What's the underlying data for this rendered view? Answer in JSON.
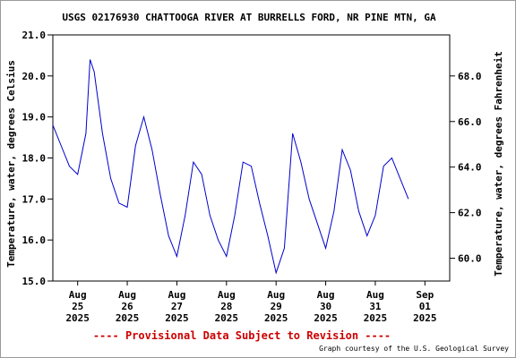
{
  "chart_data": {
    "type": "line",
    "title": "USGS 02176930 CHATTOOGA RIVER AT BURRELLS FORD, NR PINE MTN, GA",
    "ylabel": "Temperature, water, degrees Celsius",
    "y2label": "Temperature, water, degrees Fahrenheit",
    "ylim": [
      15.0,
      21.0
    ],
    "y2lim": [
      59.0,
      69.8
    ],
    "yticks": [
      "21.0",
      "20.0",
      "19.0",
      "18.0",
      "17.0",
      "16.0",
      "15.0"
    ],
    "y2ticks": [
      "68.0",
      "66.0",
      "64.0",
      "62.0",
      "60.0"
    ],
    "xlim": [
      "2025-08-24 12:00",
      "2025-09-01 12:00"
    ],
    "xticks": [
      {
        "month": "Aug",
        "day": "25",
        "year": "2025"
      },
      {
        "month": "Aug",
        "day": "26",
        "year": "2025"
      },
      {
        "month": "Aug",
        "day": "27",
        "year": "2025"
      },
      {
        "month": "Aug",
        "day": "28",
        "year": "2025"
      },
      {
        "month": "Aug",
        "day": "29",
        "year": "2025"
      },
      {
        "month": "Aug",
        "day": "30",
        "year": "2025"
      },
      {
        "month": "Aug",
        "day": "31",
        "year": "2025"
      },
      {
        "month": "Sep",
        "day": "01",
        "year": "2025"
      }
    ],
    "grid": false,
    "series": [
      {
        "color": "#0000cc",
        "x": [
          "2025-08-24 12:00",
          "2025-08-24 16:00",
          "2025-08-24 20:00",
          "2025-08-25 00:00",
          "2025-08-25 04:00",
          "2025-08-25 06:00",
          "2025-08-25 08:00",
          "2025-08-25 12:00",
          "2025-08-25 16:00",
          "2025-08-25 20:00",
          "2025-08-26 00:00",
          "2025-08-26 04:00",
          "2025-08-26 08:00",
          "2025-08-26 12:00",
          "2025-08-26 16:00",
          "2025-08-26 20:00",
          "2025-08-27 00:00",
          "2025-08-27 04:00",
          "2025-08-27 08:00",
          "2025-08-27 12:00",
          "2025-08-27 16:00",
          "2025-08-27 20:00",
          "2025-08-28 00:00",
          "2025-08-28 04:00",
          "2025-08-28 08:00",
          "2025-08-28 12:00",
          "2025-08-28 16:00",
          "2025-08-28 20:00",
          "2025-08-29 00:00",
          "2025-08-29 04:00",
          "2025-08-29 08:00",
          "2025-08-29 12:00",
          "2025-08-29 16:00",
          "2025-08-29 20:00",
          "2025-08-30 00:00",
          "2025-08-30 04:00",
          "2025-08-30 08:00",
          "2025-08-30 12:00",
          "2025-08-30 16:00",
          "2025-08-30 20:00",
          "2025-08-31 00:00",
          "2025-08-31 04:00",
          "2025-08-31 08:00",
          "2025-08-31 12:00",
          "2025-08-31 16:00"
        ],
        "y": [
          18.8,
          18.3,
          17.8,
          17.6,
          18.6,
          20.4,
          20.1,
          18.6,
          17.5,
          16.9,
          16.8,
          18.3,
          19.0,
          18.2,
          17.1,
          16.1,
          15.6,
          16.6,
          17.9,
          17.6,
          16.6,
          16.0,
          15.6,
          16.6,
          17.9,
          17.8,
          16.9,
          16.1,
          15.2,
          15.8,
          18.6,
          17.9,
          17.0,
          16.4,
          15.8,
          16.7,
          18.2,
          17.7,
          16.7,
          16.1,
          16.6,
          17.8,
          18.0,
          17.5,
          17.0
        ]
      }
    ]
  },
  "footer": {
    "provisional": "---- Provisional Data Subject to Revision ----",
    "credit": "Graph courtesy of the U.S. Geological Survey"
  }
}
